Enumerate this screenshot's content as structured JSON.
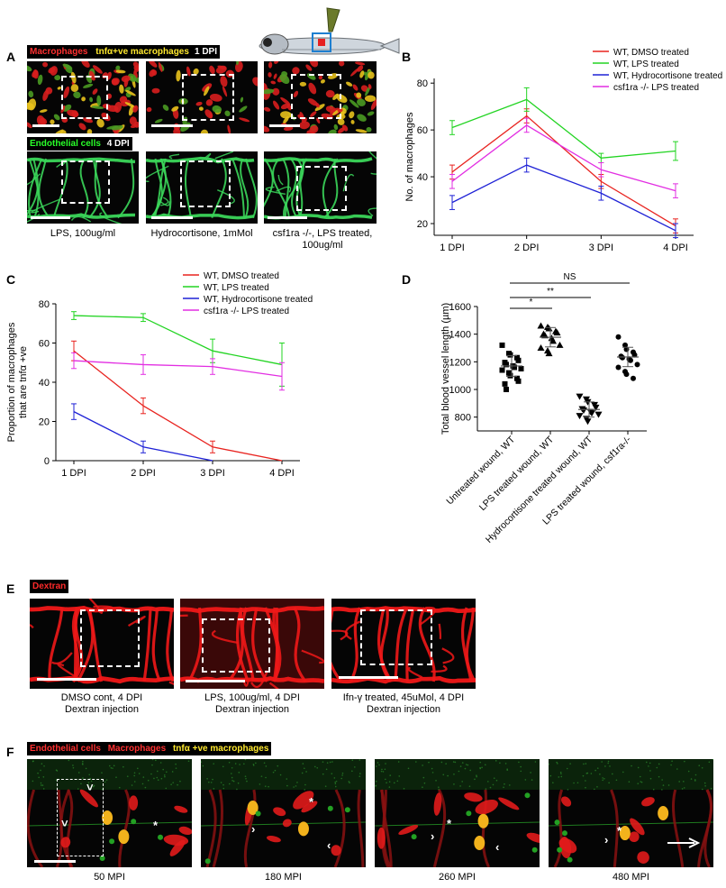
{
  "panel_letters": [
    "A",
    "B",
    "C",
    "D",
    "E",
    "F"
  ],
  "panel_a": {
    "tag_top": {
      "label1": "Macrophages",
      "label2": "tnfα+ve macrophages",
      "label3": "1 DPI"
    },
    "tag_bottom": {
      "label1": "Endothelial cells",
      "label2": "4 DPI"
    },
    "captions": [
      "LPS, 100ug/ml",
      "Hydrocortisone, 1mMol",
      "csf1ra -/-, LPS treated, 100ug/ml"
    ]
  },
  "panel_e": {
    "tag": "Dextran",
    "captions": [
      {
        "line1": "DMSO cont, 4 DPI",
        "line2": "Dextran injection"
      },
      {
        "line1": "LPS, 100ug/ml, 4 DPI",
        "line2": "Dextran injection"
      },
      {
        "line1": "Ifn-γ treated, 45uMol, 4 DPI",
        "line2": "Dextran injection"
      }
    ]
  },
  "panel_f": {
    "tag": {
      "label1": "Endothelial cells",
      "label2": "Macrophages",
      "label3": "tnfα +ve macrophages"
    },
    "captions": [
      "50 MPI",
      "180 MPI",
      "260 MPI",
      "480 MPI"
    ]
  },
  "colors": {
    "dmso": "#e8231f",
    "lps": "#22d422",
    "hydro": "#1f22d6",
    "csf": "#e22ee2"
  },
  "chart_data": [
    {
      "id": "B",
      "type": "line",
      "ylabel": "No. of macrophages",
      "categories": [
        "1 DPI",
        "2 DPI",
        "3 DPI",
        "4 DPI"
      ],
      "ylim": [
        15,
        82
      ],
      "yticks": [
        20,
        40,
        60,
        80
      ],
      "legend_position": "top-right",
      "series": [
        {
          "name": "WT, DMSO treated",
          "color": "#e8231f",
          "values": [
            42,
            66,
            38,
            19
          ],
          "err": [
            3,
            3,
            3,
            3
          ]
        },
        {
          "name": "WT, LPS treated",
          "color": "#22d422",
          "values": [
            61,
            73,
            48,
            51
          ],
          "err": [
            3,
            5,
            2,
            4
          ]
        },
        {
          "name": "WT, Hydrocortisone treated",
          "color": "#1f22d6",
          "values": [
            29,
            45,
            33,
            17
          ],
          "err": [
            3,
            3,
            3,
            3
          ]
        },
        {
          "name": "csf1ra -/- LPS treated",
          "color": "#e22ee2",
          "values": [
            38,
            62,
            43,
            34
          ],
          "err": [
            3,
            3,
            3,
            3
          ]
        }
      ]
    },
    {
      "id": "C",
      "type": "line",
      "ylabel": "Proportion of macrophages that are tnfα +ve",
      "ylabel_line1": "Proportion of macrophages",
      "ylabel_line2": "that are tnfα +ve",
      "categories": [
        "1 DPI",
        "2 DPI",
        "3 DPI",
        "4 DPI"
      ],
      "ylim": [
        0,
        80
      ],
      "yticks": [
        0,
        20,
        40,
        60,
        80
      ],
      "legend_position": "top-right",
      "series": [
        {
          "name": "WT, DMSO treated",
          "color": "#e8231f",
          "values": [
            56,
            28,
            7,
            0
          ],
          "err": [
            5,
            4,
            3,
            0
          ]
        },
        {
          "name": "WT, LPS treated",
          "color": "#22d422",
          "values": [
            74,
            73,
            56,
            49
          ],
          "err": [
            2,
            2,
            6,
            11
          ]
        },
        {
          "name": "WT, Hydrocortisone treated",
          "color": "#1f22d6",
          "values": [
            25,
            7,
            0,
            null
          ],
          "err": [
            4,
            3,
            0,
            null
          ]
        },
        {
          "name": "csf1ra -/- LPS treated",
          "color": "#e22ee2",
          "values": [
            51,
            49,
            48,
            43
          ],
          "err": [
            4,
            5,
            4,
            7
          ]
        }
      ]
    },
    {
      "id": "D",
      "type": "scatter",
      "ylabel": "Total blood vessel length (µm)",
      "categories": [
        "Untreated wound, WT",
        "LPS treated wound, WT",
        "Hydrocortisone treated wound, WT",
        "LPS treated wound, csf1ra-/-"
      ],
      "ylim": [
        700,
        1600
      ],
      "yticks": [
        800,
        1000,
        1200,
        1400,
        1600
      ],
      "markers": [
        "square",
        "triangle-up",
        "triangle-down",
        "circle"
      ],
      "means": [
        1170,
        1378,
        855,
        1235
      ],
      "sd": [
        75,
        70,
        55,
        70
      ],
      "points": [
        [
          1320,
          1260,
          1250,
          1230,
          1210,
          1195,
          1180,
          1170,
          1160,
          1150,
          1140,
          1120,
          1100,
          1080,
          1060,
          1040,
          1000
        ],
        [
          1460,
          1450,
          1440,
          1420,
          1410,
          1400,
          1390,
          1370,
          1350,
          1320,
          1300,
          1280,
          1260
        ],
        [
          950,
          930,
          910,
          890,
          870,
          860,
          850,
          840,
          830,
          820,
          810,
          790,
          770
        ],
        [
          1380,
          1320,
          1290,
          1270,
          1250,
          1240,
          1230,
          1220,
          1210,
          1180,
          1160,
          1130,
          1110,
          1080
        ]
      ],
      "significance": [
        {
          "from": 0,
          "to": 1,
          "label": "*"
        },
        {
          "from": 0,
          "to": 2,
          "label": "**"
        },
        {
          "from": 0,
          "to": 3,
          "label": "NS"
        }
      ]
    }
  ]
}
